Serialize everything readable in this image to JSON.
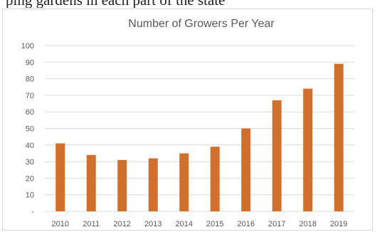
{
  "page_top_text": "ping gardens in each part of the state",
  "chart_data": {
    "type": "bar",
    "title": "Number of Growers Per Year",
    "xlabel": "",
    "ylabel": "",
    "categories": [
      "2010",
      "2011",
      "2012",
      "2013",
      "2014",
      "2015",
      "2016",
      "2017",
      "2018",
      "2019"
    ],
    "values": [
      41,
      34,
      31,
      32,
      35,
      39,
      50,
      67,
      74,
      89
    ],
    "ylim": [
      0,
      100
    ],
    "yticks": [
      0,
      10,
      20,
      30,
      40,
      50,
      60,
      70,
      80,
      90,
      100
    ],
    "ytick_labels": [
      "-",
      "10",
      "20",
      "30",
      "40",
      "50",
      "60",
      "70",
      "80",
      "90",
      "100"
    ],
    "grid": true,
    "legend": "none",
    "bar_color": "#D0702C",
    "grid_color": "#D9D9D9",
    "text_color": "#595959"
  }
}
